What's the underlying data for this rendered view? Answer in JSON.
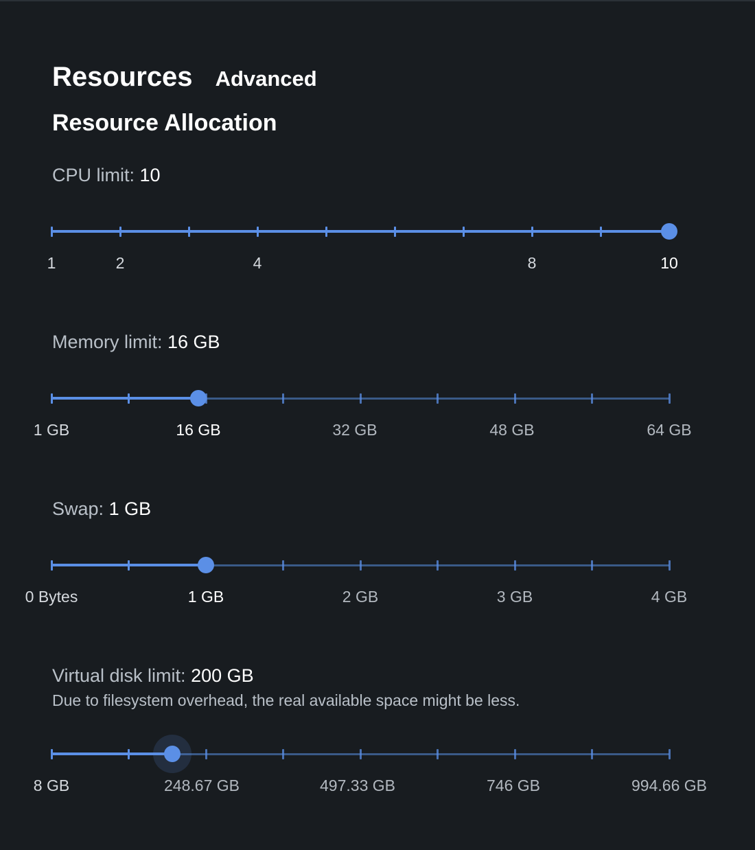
{
  "tabs": {
    "resources": "Resources",
    "advanced": "Advanced"
  },
  "section_title": "Resource Allocation",
  "cpu": {
    "label": "CPU limit:",
    "value": "10",
    "min": 1,
    "max": 10,
    "current": 10,
    "ticks": 10,
    "marks": [
      "1",
      "2",
      "4",
      "8",
      "10"
    ]
  },
  "memory": {
    "label": "Memory limit:",
    "value": "16 GB",
    "current_fraction": 0.238,
    "ticks": 9,
    "marks": [
      "1 GB",
      "16 GB",
      "32 GB",
      "48 GB",
      "64 GB"
    ]
  },
  "swap": {
    "label": "Swap:",
    "value": "1 GB",
    "current_fraction": 0.25,
    "ticks": 9,
    "marks": [
      "0 Bytes",
      "1 GB",
      "2 GB",
      "3 GB",
      "4 GB"
    ]
  },
  "disk": {
    "label": "Virtual disk limit:",
    "value": "200 GB",
    "note": "Due to filesystem overhead, the real available space might be less.",
    "current_fraction": 0.195,
    "ticks": 9,
    "marks": [
      "8 GB",
      "248.67 GB",
      "497.33 GB",
      "746 GB",
      "994.66 GB"
    ]
  },
  "colors": {
    "background": "#181c20",
    "accent": "#5b8fe6",
    "track_inactive": "#3a5a88",
    "label": "#b9c0c8",
    "text": "#ffffff"
  }
}
